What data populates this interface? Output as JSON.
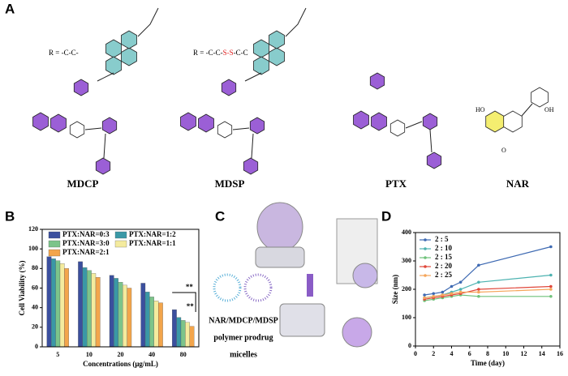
{
  "panel_a": {
    "label": "A",
    "r_label_1": "R = -C-C-",
    "r_label_2": {
      "prefix": "R = -C-C-",
      "disulfide": "S-S",
      "suffix": "-C-C"
    },
    "compounds": [
      "MDCP",
      "MDSP",
      "PTX",
      "NAR"
    ],
    "nar_atoms": [
      "HO",
      "OH",
      "O"
    ]
  },
  "panel_c": {
    "label": "C",
    "caption": [
      "NAR/MDCP/MDSP",
      "polymer prodrug",
      "micelles"
    ]
  },
  "chart_data": [
    {
      "type": "bar",
      "label": "B",
      "ylabel": "Cell Viability (%)",
      "xlabel": "Concentrations (μg/mL)",
      "categories": [
        "5",
        "10",
        "20",
        "40",
        "80"
      ],
      "series": [
        {
          "name": "PTX:NAR=0:3",
          "color": "#3b4f9e",
          "values": [
            92,
            87,
            73,
            65,
            38
          ]
        },
        {
          "name": "PTX:NAR=1:2",
          "color": "#3a98a6",
          "values": [
            90,
            81,
            70,
            56,
            30
          ]
        },
        {
          "name": "PTX:NAR=3:0",
          "color": "#7cc48a",
          "values": [
            88,
            78,
            66,
            51,
            27
          ]
        },
        {
          "name": "PTX:NAR=1:1",
          "color": "#f4eb9e",
          "values": [
            85,
            75,
            63,
            47,
            25
          ]
        },
        {
          "name": "PTX:NAR=2:1",
          "color": "#f3a54b",
          "values": [
            80,
            71,
            60,
            45,
            21
          ]
        }
      ],
      "ylim": [
        0,
        120
      ],
      "yticks": [
        0,
        20,
        40,
        60,
        80,
        100,
        120
      ],
      "annotations": [
        "**",
        "**"
      ]
    },
    {
      "type": "line",
      "label": "D",
      "ylabel": "Size (nm)",
      "xlabel": "Time (day)",
      "x": [
        1,
        2,
        3,
        4,
        5,
        7,
        15
      ],
      "series": [
        {
          "name": "2 : 5",
          "color": "#3d69b2",
          "values": [
            180,
            185,
            190,
            210,
            225,
            285,
            350
          ]
        },
        {
          "name": "2 : 10",
          "color": "#4cb2b0",
          "values": [
            170,
            175,
            180,
            190,
            200,
            225,
            250
          ]
        },
        {
          "name": "2 : 15",
          "color": "#6fc27a",
          "values": [
            160,
            165,
            170,
            175,
            180,
            175,
            175
          ]
        },
        {
          "name": "2 : 20",
          "color": "#e0463a",
          "values": [
            165,
            170,
            175,
            180,
            185,
            200,
            210
          ]
        },
        {
          "name": "2 : 25",
          "color": "#f5a55a",
          "values": [
            170,
            175,
            180,
            185,
            190,
            190,
            200
          ]
        }
      ],
      "xlim": [
        0,
        16
      ],
      "xticks": [
        0,
        2,
        4,
        6,
        8,
        10,
        12,
        14,
        16
      ],
      "ylim": [
        0,
        400
      ],
      "yticks": [
        0,
        100,
        200,
        300,
        400
      ]
    }
  ]
}
